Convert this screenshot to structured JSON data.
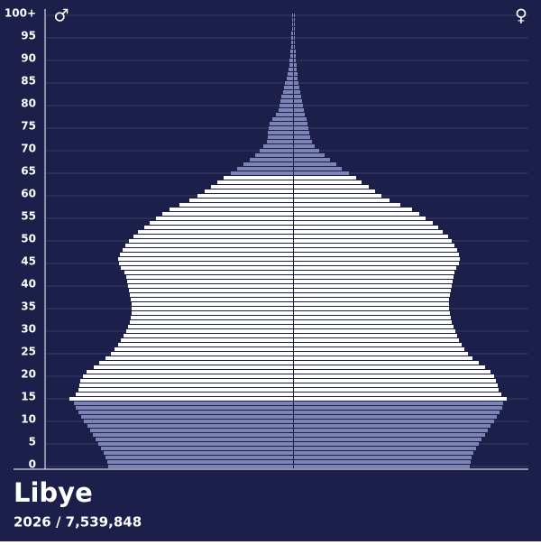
{
  "chart_data": {
    "type": "pyramid",
    "title": "Libye",
    "subtitle": "2026 / 7,539,848",
    "categories": [
      "0",
      null,
      null,
      null,
      null,
      "5",
      null,
      null,
      null,
      null,
      "10",
      null,
      null,
      null,
      null,
      "15",
      null,
      null,
      null,
      null,
      "20",
      null,
      null,
      null,
      null,
      "25",
      null,
      null,
      null,
      null,
      "30",
      null,
      null,
      null,
      null,
      "35",
      null,
      null,
      null,
      null,
      "40",
      null,
      null,
      null,
      null,
      "45",
      null,
      null,
      null,
      null,
      "50",
      null,
      null,
      null,
      null,
      "55",
      null,
      null,
      null,
      null,
      "60",
      null,
      null,
      null,
      null,
      "65",
      null,
      null,
      null,
      null,
      "70",
      null,
      null,
      null,
      null,
      "75",
      null,
      null,
      null,
      null,
      "80",
      null,
      null,
      null,
      null,
      "85",
      null,
      null,
      null,
      null,
      "90",
      null,
      null,
      null,
      null,
      "95",
      null,
      null,
      null,
      null,
      "100+"
    ],
    "series": [
      {
        "name": "♂",
        "color": "#7c83b5",
        "values": [
          65600,
          65920,
          66560,
          67200,
          68160,
          69120,
          70080,
          71040,
          72000,
          72960,
          74240,
          75200,
          76160,
          77120,
          77760,
          79360,
          77120,
          76160,
          75840,
          75520,
          74560,
          73280,
          70720,
          68800,
          66560,
          64640,
          63360,
          62080,
          61120,
          60160,
          59200,
          58560,
          57920,
          57600,
          57280,
          57280,
          57280,
          57600,
          57920,
          58240,
          58560,
          58880,
          59200,
          59840,
          61120,
          61760,
          62080,
          61440,
          60480,
          59520,
          58240,
          56640,
          55040,
          52800,
          50880,
          48640,
          46400,
          43840,
          40320,
          36800,
          33920,
          31360,
          29120,
          26880,
          24640,
          22080,
          19840,
          17600,
          15360,
          13440,
          11840,
          10560,
          9280,
          8960,
          8960,
          8640,
          8320,
          7360,
          6080,
          5120,
          4800,
          4480,
          4160,
          3520,
          3200,
          2880,
          2240,
          1920,
          1600,
          1280,
          1280,
          960,
          960,
          640,
          640,
          640,
          640,
          320,
          320,
          320,
          320
        ]
      },
      {
        "name": "♀",
        "color": "#7c83b5",
        "values": [
          62400,
          62720,
          63040,
          63680,
          64640,
          65600,
          66560,
          67840,
          68800,
          69760,
          71040,
          72000,
          72960,
          73920,
          74240,
          75520,
          73600,
          72640,
          72320,
          71680,
          71040,
          69760,
          67840,
          65600,
          63360,
          61760,
          60480,
          59520,
          58560,
          57920,
          57280,
          56640,
          56000,
          55680,
          55360,
          55040,
          55040,
          55040,
          55360,
          55680,
          56000,
          56320,
          56640,
          56960,
          57600,
          58560,
          58880,
          58560,
          57920,
          56960,
          56000,
          54720,
          52800,
          51200,
          49280,
          46720,
          44480,
          41920,
          37760,
          33920,
          31040,
          28800,
          26560,
          24000,
          22080,
          19520,
          16960,
          15040,
          12800,
          10880,
          8960,
          7360,
          6400,
          5760,
          5440,
          5120,
          4800,
          4480,
          3840,
          3520,
          3200,
          2880,
          2560,
          2240,
          1920,
          1600,
          1280,
          1280,
          960,
          960,
          640,
          640,
          640,
          320,
          320,
          320,
          320,
          320,
          320,
          320,
          320
        ]
      }
    ],
    "highlight": {
      "from": 15,
      "to": 64,
      "color": "#ffffff"
    },
    "background": "#1b1f4a",
    "grid": true
  }
}
